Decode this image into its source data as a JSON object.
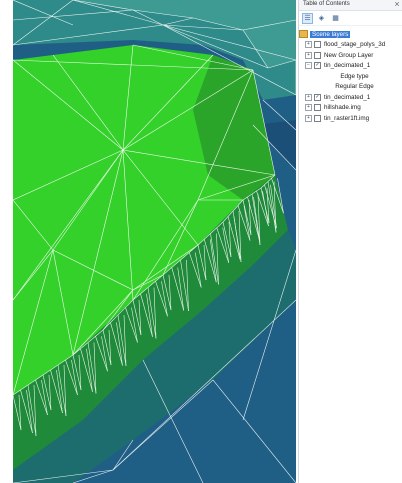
{
  "toc": {
    "title": "Table of Contents",
    "pin": "⨯",
    "toolbar": [
      {
        "name": "list-by-drawing-order-button",
        "glyph": "☰",
        "selected": true
      },
      {
        "name": "list-by-source-button",
        "glyph": "◈",
        "selected": false
      },
      {
        "name": "list-by-visibility-button",
        "glyph": "▦",
        "selected": false
      }
    ],
    "root": "Scene layers",
    "layers": [
      {
        "label": "flood_stage_polys_3d",
        "checked": false
      },
      {
        "label": "New Group Layer",
        "checked": false
      },
      {
        "label": "tin_decimated_1",
        "checked": true,
        "expanded": true,
        "legend": {
          "heading": "Edge type",
          "item": "Regular Edge"
        }
      },
      {
        "label": "tin_decimated_1",
        "checked": true
      },
      {
        "label": "hillshade.img",
        "checked": false
      },
      {
        "label": "tin_raster1ft.img",
        "checked": false
      }
    ]
  },
  "colors": {
    "deep_blue": "#1b4f78",
    "mid_blue": "#205f85",
    "teal": "#2f8a8a",
    "teal_light": "#3e9b93",
    "green_bright": "#34d12a",
    "green_mid": "#2aa52a",
    "green_dark": "#1f8a3a",
    "edge": "#ffffff"
  }
}
